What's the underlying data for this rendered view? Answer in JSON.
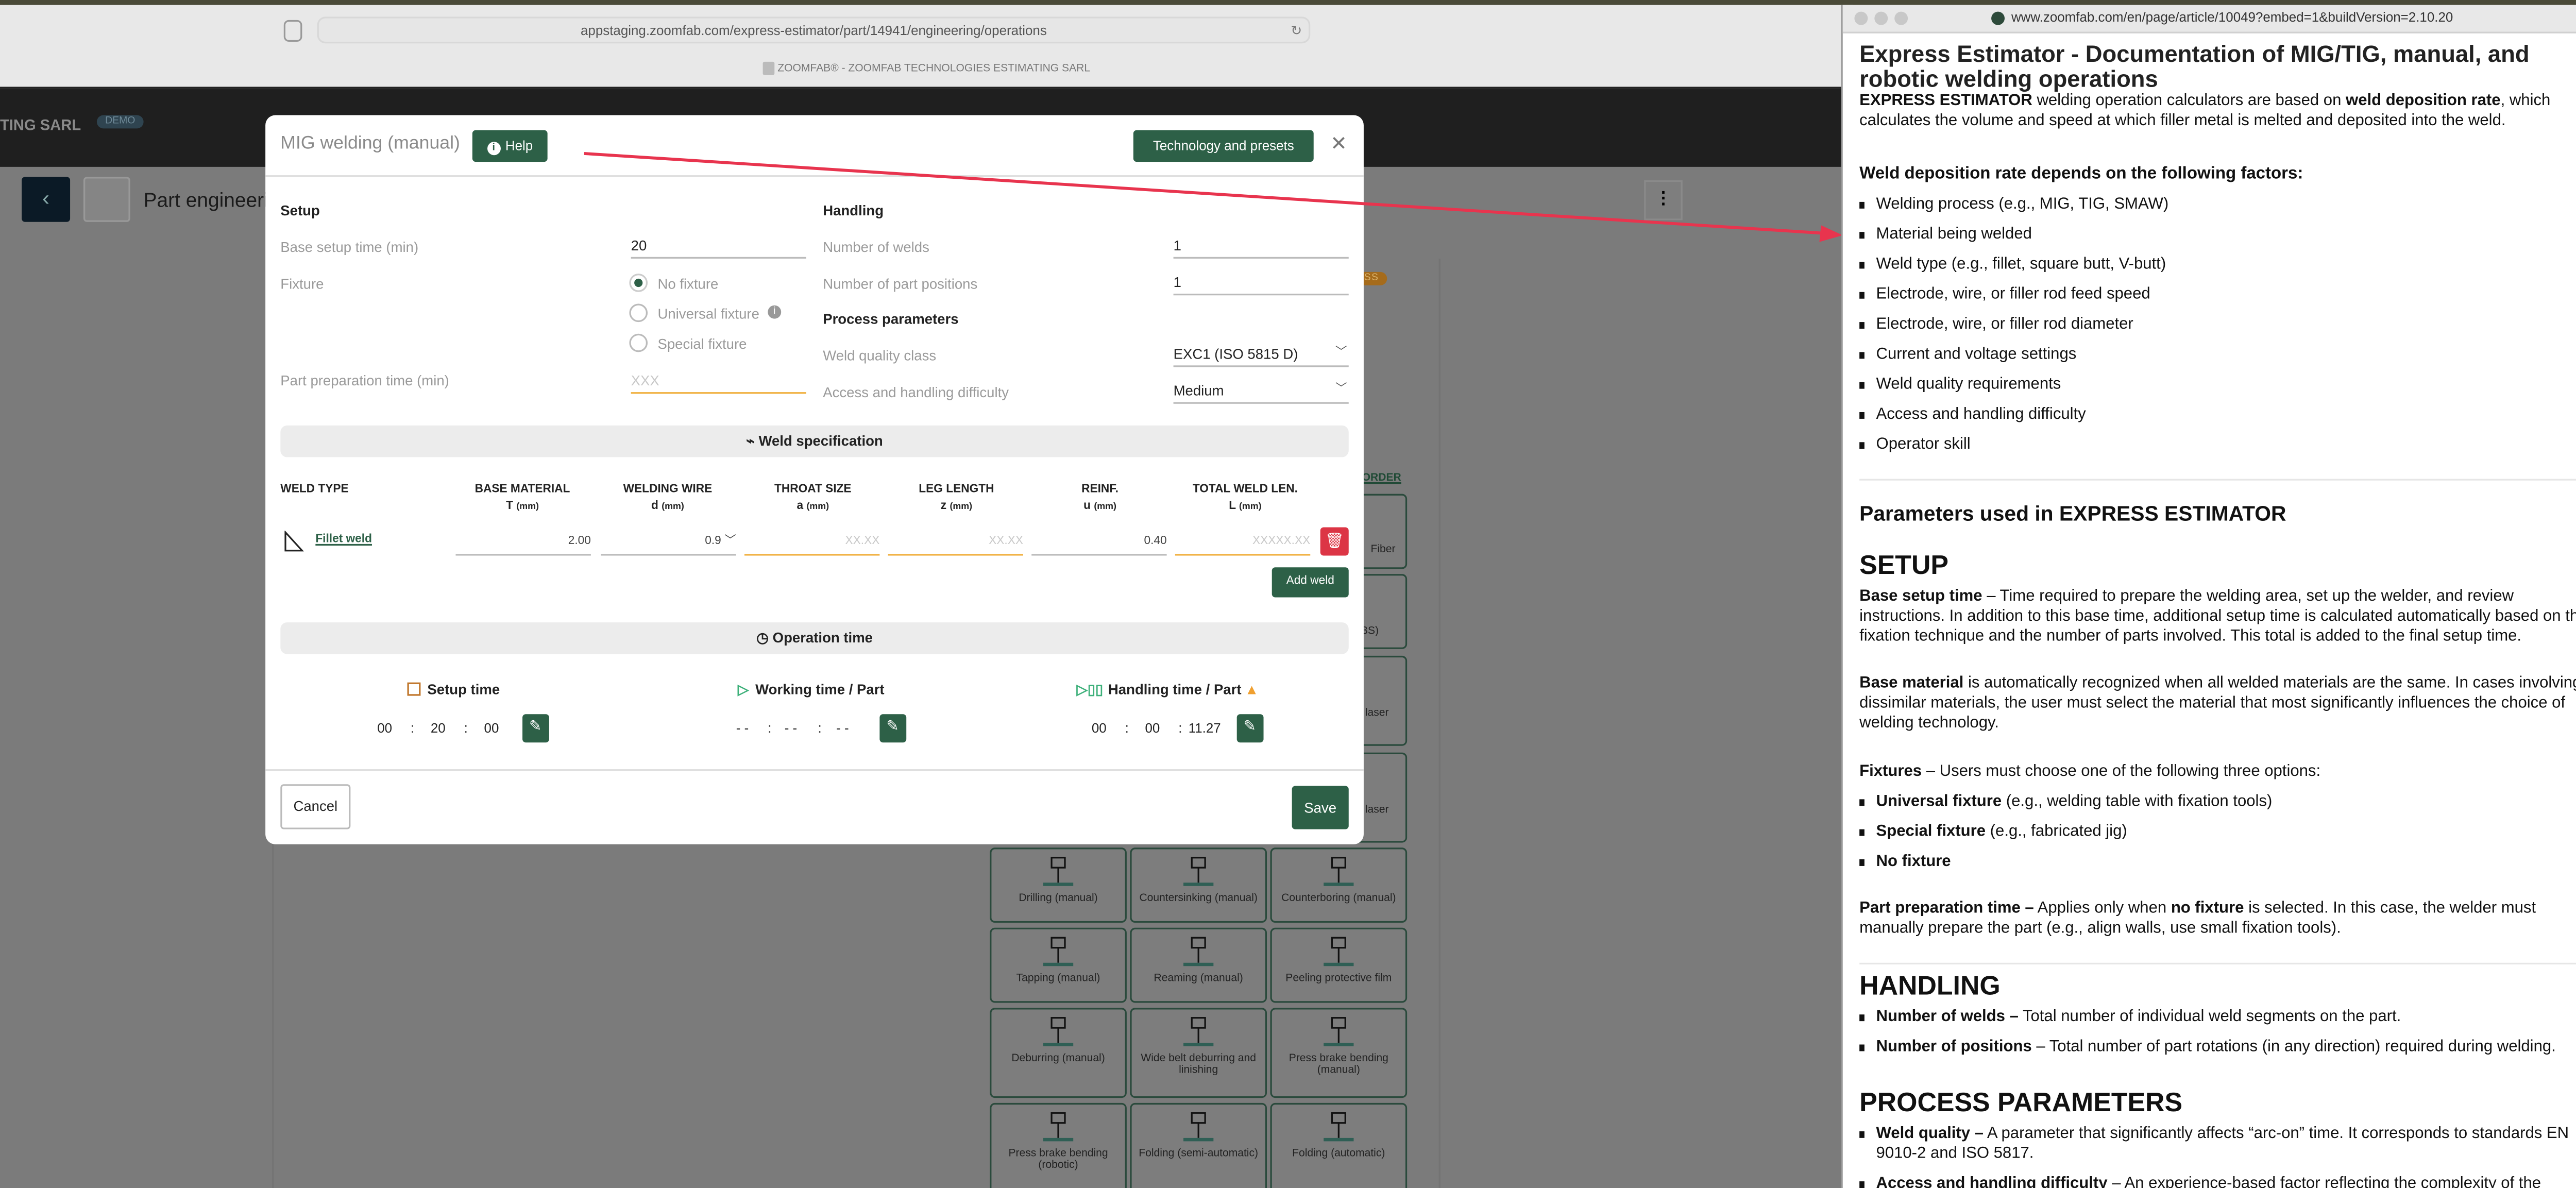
{
  "browser_left": {
    "url": "appstaging.zoomfab.com/express-estimator/part/14941/engineering/operations",
    "tab_title": "ZOOMFAB® - ZOOMFAB TECHNOLOGIES ESTIMATING SARL"
  },
  "app_header": {
    "company": "TING SARL",
    "badge": "DEMO"
  },
  "page": {
    "title": "Part engineering",
    "status_badge": "IN PROGRESS",
    "order_link": "ORDER"
  },
  "tiles_partial": [
    "Fiber",
    "(…BS)",
    "laser",
    "laser"
  ],
  "tiles": [
    "Drilling (manual)",
    "Countersinking (manual)",
    "Counterboring (manual)",
    "Tapping (manual)",
    "Reaming (manual)",
    "Peeling protective film",
    "Deburring (manual)",
    "Wide belt deburring and linishing",
    "Press brake bending (manual)",
    "Press brake bending (robotic)",
    "Folding (semi-automatic)",
    "Folding (automatic)"
  ],
  "modal": {
    "title": "MIG welding (manual)",
    "help": "Help",
    "tech_presets": "Technology and presets",
    "setup": {
      "heading": "Setup",
      "base_setup_label": "Base setup time (min)",
      "base_setup_value": "20",
      "fixture_label": "Fixture",
      "fixture_options": [
        "No fixture",
        "Universal fixture",
        "Special fixture"
      ],
      "fixture_selected": "No fixture",
      "part_prep_label": "Part preparation time (min)",
      "part_prep_placeholder": "XXX"
    },
    "handling": {
      "heading": "Handling",
      "welds_label": "Number of welds",
      "welds_value": "1",
      "positions_label": "Number of part positions",
      "positions_value": "1"
    },
    "process": {
      "heading": "Process parameters",
      "quality_label": "Weld quality class",
      "quality_value": "EXC1 (ISO 5815 D)",
      "access_label": "Access and handling difficulty",
      "access_value": "Medium"
    },
    "weld_spec": {
      "heading": "Weld specification",
      "columns": [
        {
          "h": "WELD TYPE",
          "s": "",
          "u": ""
        },
        {
          "h": "BASE MATERIAL",
          "s": "T",
          "u": "(mm)"
        },
        {
          "h": "WELDING WIRE",
          "s": "d",
          "u": "(mm)"
        },
        {
          "h": "THROAT SIZE",
          "s": "a",
          "u": "(mm)"
        },
        {
          "h": "LEG LENGTH",
          "s": "z",
          "u": "(mm)"
        },
        {
          "h": "REINF.",
          "s": "u",
          "u": "(mm)"
        },
        {
          "h": "TOTAL WELD LEN.",
          "s": "L",
          "u": "(mm)"
        }
      ],
      "row": {
        "type": "Fillet weld",
        "base_material": "2.00",
        "wire": "0.9",
        "throat_ph": "XX.XX",
        "leg_ph": "XX.XX",
        "reinf": "0.40",
        "total_ph": "XXXXX.XX"
      },
      "add_weld": "Add weld"
    },
    "operation_time": {
      "heading": "Operation time",
      "setup": {
        "label": "Setup time",
        "h": "00",
        "m": "20",
        "s": "00"
      },
      "working": {
        "label": "Working time / Part",
        "h": "- -",
        "m": "- -",
        "s": "- -"
      },
      "handling": {
        "label": "Handling time / Part",
        "h": "00",
        "m": "00",
        "s": "11.27"
      }
    },
    "cancel": "Cancel",
    "save": "Save"
  },
  "help_window": {
    "url": "www.zoomfab.com/en/page/article/10049?embed=1&buildVersion=2.10.20",
    "title": "Express Estimator - Documentation of MIG/TIG, manual, and robotic welding operations",
    "intro": [
      "EXPRESS ESTIMATOR",
      " welding operation calculators are based on ",
      "weld deposition rate",
      ", which calculates the volume and speed at which filler metal is melted and deposited into the weld."
    ],
    "factors_heading": "Weld deposition rate depends on the following factors:",
    "factors": [
      "Welding process (e.g., MIG, TIG, SMAW)",
      "Material being welded",
      "Weld type (e.g., fillet, square butt, V-butt)",
      "Electrode, wire, or filler rod feed speed",
      "Electrode, wire, or filler rod diameter",
      "Current and voltage settings",
      "Weld quality requirements",
      "Access and handling difficulty",
      "Operator skill"
    ],
    "params_heading": "Parameters used in EXPRESS ESTIMATOR",
    "setup_heading": "SETUP",
    "base_setup": [
      "Base setup time",
      " – Time required to prepare the welding area, set up the welder, and review instructions. In addition to this base time, additional setup time is calculated automatically based on the fixation technique and the number of parts involved. This total is added to the final setup time."
    ],
    "base_material": [
      "Base material",
      " is automatically recognized when all welded materials are the same. In cases involving dissimilar materials, the user must select the material that most significantly influences the choice of welding technology."
    ],
    "fixtures": [
      "Fixtures",
      " – Users must choose one of the following three options:"
    ],
    "fixture_items": [
      [
        "Universal fixture",
        " (e.g., welding table with fixation tools)"
      ],
      [
        "Special fixture",
        " (e.g., fabricated jig)"
      ],
      [
        "No fixture",
        ""
      ]
    ],
    "part_prep": [
      "Part preparation time –",
      " Applies only when ",
      "no fixture",
      " is selected. In this case, the welder must manually prepare the part (e.g., align walls, use small fixation tools)."
    ],
    "handling_heading": "HANDLING",
    "handling_items": [
      [
        "Number of welds –",
        " Total number of individual weld segments on the part."
      ],
      [
        "Number of positions",
        " – Total number of part rotations (in any direction) required during welding."
      ]
    ],
    "process_heading": "PROCESS PARAMETERS",
    "process_items": [
      [
        "Weld quality –",
        " A parameter that significantly affects “arc-on” time. It corresponds to standards EN 9010-2 and ISO 5817."
      ],
      [
        "Access and handling difficulty",
        " – An experience-based factor reflecting the complexity of the"
      ]
    ]
  },
  "colors": {
    "primary": "#2d6047",
    "danger": "#dc3545",
    "warning": "#f0a030",
    "annotation_arrow": "#e8344e"
  }
}
